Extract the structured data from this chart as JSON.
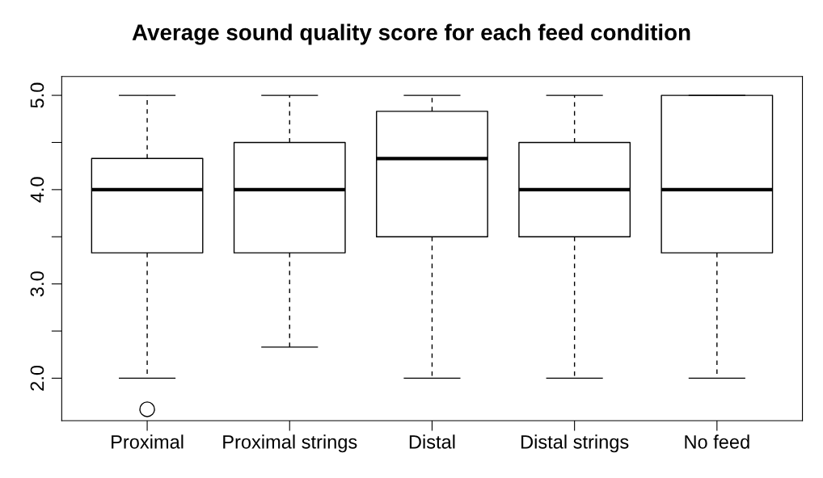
{
  "chart_data": {
    "type": "box",
    "title": "Average sound quality score for each feed condition",
    "categories": [
      "Proximal",
      "Proximal strings",
      "Distal",
      "Distal strings",
      "No feed"
    ],
    "boxes": [
      {
        "low": 2.0,
        "q1": 3.33,
        "median": 4.0,
        "q3": 4.33,
        "high": 5.0,
        "outliers": [
          1.67
        ]
      },
      {
        "low": 2.33,
        "q1": 3.33,
        "median": 4.0,
        "q3": 4.5,
        "high": 5.0
      },
      {
        "low": 2.0,
        "q1": 3.5,
        "median": 4.33,
        "q3": 4.83,
        "high": 5.0
      },
      {
        "low": 2.0,
        "q1": 3.5,
        "median": 4.0,
        "q3": 4.5,
        "high": 5.0
      },
      {
        "low": 2.0,
        "q1": 3.33,
        "median": 4.0,
        "q3": 5.0,
        "high": 5.0
      }
    ],
    "ylim": [
      1.55,
      5.2
    ],
    "yticks": [
      {
        "value": 2.0,
        "label": "2.0"
      },
      {
        "value": 2.5,
        "label": null
      },
      {
        "value": 3.0,
        "label": "3.0"
      },
      {
        "value": 3.5,
        "label": null
      },
      {
        "value": 4.0,
        "label": "4.0"
      },
      {
        "value": 4.5,
        "label": null
      },
      {
        "value": 5.0,
        "label": "5.0"
      }
    ],
    "grid": false,
    "legend": false
  }
}
